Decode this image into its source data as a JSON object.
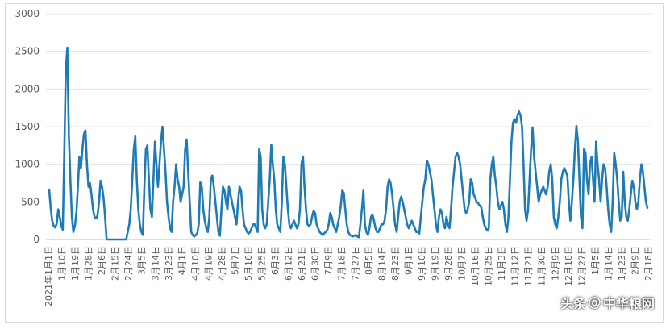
{
  "chart_data": {
    "type": "line",
    "title": "",
    "xlabel": "",
    "ylabel": "",
    "ylim": [
      0,
      3000
    ],
    "yticks": [
      0,
      500,
      1000,
      1500,
      2000,
      2500,
      3000
    ],
    "grid": "horizontal",
    "legend": "none",
    "line_color": "#1f7bb6",
    "x_tick_labels": [
      "2021年1月1日",
      "1月10日",
      "1月19日",
      "1月28日",
      "2月6日",
      "2月15日",
      "2月24日",
      "3月5日",
      "3月14日",
      "3月23日",
      "4月1日",
      "4月10日",
      "4月19日",
      "4月28日",
      "5月7日",
      "5月16日",
      "5月25日",
      "6月3日",
      "6月12日",
      "6月21日",
      "6月30日",
      "7月9日",
      "7月18日",
      "7月27日",
      "8月5日",
      "8月14日",
      "8月23日",
      "9月1日",
      "9月10日",
      "9月19日",
      "9月28日",
      "10月7日",
      "10月16日",
      "10月25日",
      "11月3日",
      "11月12日",
      "11月21日",
      "11月30日",
      "12月9日",
      "12月18日",
      "12月27日",
      "1月5日",
      "1月14日",
      "1月23日",
      "2月9日",
      "2月18日"
    ],
    "series": [
      {
        "name": "",
        "values": [
          660,
          420,
          250,
          180,
          160,
          210,
          400,
          300,
          180,
          130,
          1150,
          2250,
          2550,
          1400,
          800,
          300,
          100,
          180,
          350,
          700,
          1100,
          950,
          1200,
          1400,
          1450,
          1000,
          700,
          750,
          600,
          400,
          300,
          280,
          320,
          500,
          780,
          700,
          550,
          300,
          0,
          0,
          0,
          0,
          0,
          0,
          0,
          0,
          0,
          0,
          0,
          0,
          0,
          0,
          100,
          200,
          400,
          800,
          1200,
          1370,
          800,
          400,
          200,
          100,
          60,
          700,
          1200,
          1250,
          800,
          400,
          300,
          800,
          1300,
          1000,
          700,
          1000,
          1300,
          1500,
          1200,
          900,
          500,
          300,
          150,
          100,
          500,
          700,
          1000,
          800,
          700,
          500,
          600,
          700,
          1200,
          1330,
          900,
          500,
          100,
          60,
          40,
          60,
          80,
          200,
          760,
          700,
          400,
          250,
          150,
          100,
          300,
          800,
          850,
          700,
          500,
          300,
          100,
          50,
          400,
          700,
          650,
          500,
          400,
          700,
          600,
          500,
          400,
          300,
          200,
          500,
          700,
          650,
          400,
          200,
          150,
          100,
          80,
          100,
          150,
          200,
          200,
          150,
          100,
          1200,
          1100,
          400,
          200,
          150,
          200,
          500,
          800,
          1260,
          1000,
          800,
          400,
          200,
          150,
          100,
          500,
          1100,
          1000,
          700,
          400,
          200,
          150,
          200,
          250,
          200,
          150,
          200,
          400,
          1000,
          1100,
          700,
          400,
          200,
          180,
          200,
          300,
          380,
          350,
          200,
          150,
          100,
          80,
          60,
          80,
          100,
          120,
          200,
          350,
          300,
          200,
          150,
          100,
          200,
          300,
          450,
          650,
          620,
          400,
          200,
          100,
          60,
          50,
          40,
          50,
          60,
          40,
          30,
          200,
          400,
          650,
          200,
          100,
          60,
          150,
          300,
          330,
          250,
          150,
          100,
          100,
          150,
          200,
          200,
          250,
          400,
          700,
          800,
          750,
          600,
          400,
          200,
          100,
          300,
          500,
          570,
          500,
          400,
          300,
          200,
          150,
          200,
          250,
          200,
          150,
          100,
          100,
          80,
          300,
          500,
          700,
          800,
          1050,
          1000,
          900,
          800,
          600,
          400,
          200,
          100,
          300,
          400,
          350,
          200,
          150,
          300,
          200,
          150,
          400,
          700,
          900,
          1100,
          1150,
          1100,
          1000,
          800,
          600,
          400,
          350,
          400,
          500,
          800,
          750,
          600,
          550,
          500,
          480,
          450,
          430,
          300,
          200,
          150,
          120,
          150,
          800,
          1000,
          1100,
          850,
          700,
          500,
          400,
          450,
          500,
          400,
          200,
          100,
          300,
          800,
          1300,
          1550,
          1600,
          1550,
          1650,
          1700,
          1650,
          1500,
          1000,
          400,
          250,
          400,
          800,
          1200,
          1490,
          1100,
          900,
          700,
          500,
          600,
          650,
          700,
          650,
          600,
          700,
          900,
          1000,
          800,
          300,
          200,
          150,
          300,
          500,
          800,
          900,
          950,
          900,
          850,
          500,
          250,
          500,
          800,
          1200,
          1510,
          1300,
          800,
          300,
          150,
          1200,
          1150,
          800,
          600,
          1000,
          1100,
          800,
          500,
          1300,
          1000,
          800,
          500,
          800,
          1000,
          950,
          700,
          400,
          200,
          100,
          500,
          1150,
          1000,
          800,
          500,
          250,
          300,
          900,
          500,
          300,
          250,
          400,
          600,
          780,
          700,
          500,
          400,
          500,
          800,
          1000,
          900,
          700,
          500,
          420
        ]
      }
    ]
  },
  "watermark": {
    "prefix": "头条",
    "at": "@",
    "name": "中华粮网"
  }
}
